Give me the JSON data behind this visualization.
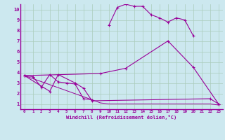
{
  "xlabel": "Windchill (Refroidissement éolien,°C)",
  "bg_color": "#cce8ef",
  "line_color": "#990099",
  "grid_color": "#aaccbb",
  "xlim": [
    -0.5,
    23.5
  ],
  "ylim": [
    0.5,
    10.5
  ],
  "xticks": [
    0,
    1,
    2,
    3,
    4,
    5,
    6,
    7,
    8,
    9,
    10,
    11,
    12,
    13,
    14,
    15,
    16,
    17,
    18,
    19,
    20,
    21,
    22,
    23
  ],
  "yticks": [
    1,
    2,
    3,
    4,
    5,
    6,
    7,
    8,
    9,
    10
  ],
  "line1_x": [
    0,
    1,
    2,
    3,
    4,
    5,
    6,
    7,
    8
  ],
  "line1_y": [
    3.7,
    3.6,
    2.6,
    3.8,
    3.1,
    3.0,
    2.9,
    1.5,
    1.4
  ],
  "line2_x": [
    0,
    3,
    4,
    6,
    7,
    8,
    22,
    23
  ],
  "line2_y": [
    3.7,
    2.2,
    3.8,
    3.0,
    2.5,
    1.3,
    1.5,
    1.0
  ],
  "line3_x": [
    0,
    9,
    12,
    17,
    20,
    23
  ],
  "line3_y": [
    3.7,
    3.9,
    4.4,
    7.0,
    4.5,
    1.0
  ],
  "line4_x": [
    10,
    11,
    12,
    13,
    14,
    15,
    16,
    17,
    18,
    19,
    20
  ],
  "line4_y": [
    8.5,
    10.2,
    10.5,
    10.3,
    10.3,
    9.5,
    9.2,
    8.8,
    9.2,
    9.0,
    7.5
  ],
  "line5_x": [
    0,
    8,
    9,
    10,
    11,
    12,
    13,
    14,
    15,
    16,
    17,
    18,
    19,
    20,
    21,
    22,
    23
  ],
  "line5_y": [
    3.7,
    1.4,
    1.1,
    1.0,
    1.0,
    1.0,
    1.0,
    1.0,
    1.0,
    1.0,
    1.0,
    1.0,
    1.0,
    1.0,
    1.0,
    1.0,
    0.9
  ]
}
